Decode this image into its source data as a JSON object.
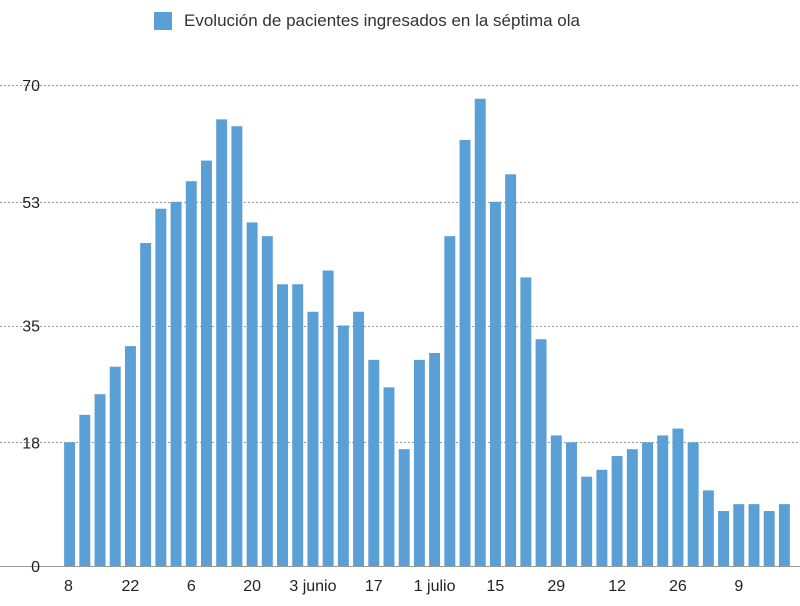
{
  "colors": {
    "bar": "#5a9fd5",
    "grid": "#9a9a9a"
  },
  "chart_data": {
    "type": "bar",
    "title": "",
    "xlabel": "",
    "ylabel": "",
    "legend": {
      "position": "top-center",
      "entries": [
        "Evolución de pacientes ingresados en la séptima ola"
      ]
    },
    "ylim": [
      0,
      70
    ],
    "y_ticks": [
      0,
      18,
      35,
      53,
      70
    ],
    "grid": true,
    "x_tick_labels": [
      "8",
      "",
      "",
      "",
      "22",
      "",
      "",
      "",
      "6",
      "",
      "",
      "",
      "20",
      "",
      "",
      "",
      "3 junio",
      "",
      "",
      "",
      "17",
      "",
      "",
      "",
      "1 julio",
      "",
      "",
      "",
      "15",
      "",
      "",
      "",
      "29",
      "",
      "",
      "",
      "12",
      "",
      "",
      "",
      "26",
      "",
      "",
      "",
      "9",
      "",
      "",
      ""
    ],
    "series": [
      {
        "name": "Evolución de pacientes ingresados en la séptima ola",
        "values": [
          18,
          22,
          25,
          29,
          32,
          47,
          52,
          53,
          56,
          59,
          65,
          64,
          50,
          48,
          41,
          41,
          37,
          43,
          35,
          37,
          30,
          26,
          17,
          30,
          31,
          48,
          62,
          68,
          53,
          57,
          42,
          33,
          19,
          18,
          13,
          14,
          16,
          17,
          18,
          19,
          20,
          18,
          11,
          8,
          9,
          9,
          8,
          9
        ]
      }
    ]
  }
}
